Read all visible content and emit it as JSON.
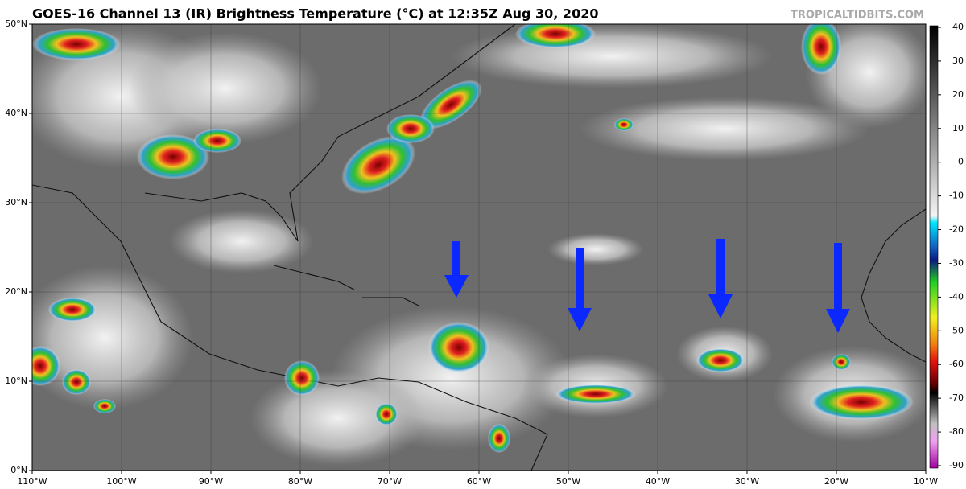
{
  "header": {
    "title": "GOES-16 Channel 13 (IR) Brightness Temperature (°C) at 12:35Z Aug 30, 2020",
    "site": "TROPICALTIDBITS.COM"
  },
  "map": {
    "lonlim": [
      -110,
      -10
    ],
    "latlim": [
      0,
      50
    ],
    "lonticks": [
      {
        "value": -110,
        "label": "110°W"
      },
      {
        "value": -100,
        "label": "100°W"
      },
      {
        "value": -90,
        "label": "90°W"
      },
      {
        "value": -80,
        "label": "80°W"
      },
      {
        "value": -70,
        "label": "70°W"
      },
      {
        "value": -60,
        "label": "60°W"
      },
      {
        "value": -50,
        "label": "50°W"
      },
      {
        "value": -40,
        "label": "40°W"
      },
      {
        "value": -30,
        "label": "30°W"
      },
      {
        "value": -20,
        "label": "20°W"
      },
      {
        "value": -10,
        "label": "10°W"
      }
    ],
    "latticks": [
      {
        "value": 0,
        "label": "0°N"
      },
      {
        "value": 10,
        "label": "10°N"
      },
      {
        "value": 20,
        "label": "20°N"
      },
      {
        "value": 30,
        "label": "30°N"
      },
      {
        "value": 40,
        "label": "40°N"
      },
      {
        "value": 50,
        "label": "50°N"
      }
    ]
  },
  "colorbar": {
    "range": [
      -90,
      40
    ],
    "ticks": [
      40,
      30,
      20,
      10,
      0,
      -10,
      -20,
      -30,
      -40,
      -50,
      -60,
      -70,
      -80,
      -90
    ]
  }
}
